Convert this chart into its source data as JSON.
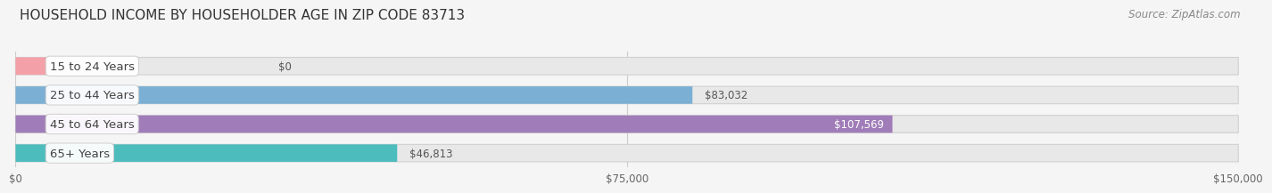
{
  "title": "HOUSEHOLD INCOME BY HOUSEHOLDER AGE IN ZIP CODE 83713",
  "source": "Source: ZipAtlas.com",
  "categories": [
    "15 to 24 Years",
    "25 to 44 Years",
    "45 to 64 Years",
    "65+ Years"
  ],
  "values": [
    0,
    83032,
    107569,
    46813
  ],
  "bar_colors": [
    "#f4a0a8",
    "#7bafd4",
    "#a07db8",
    "#4cbcbc"
  ],
  "label_colors": [
    "#555555",
    "#555555",
    "#ffffff",
    "#555555"
  ],
  "value_labels": [
    "$0",
    "$83,032",
    "$107,569",
    "$46,813"
  ],
  "xlim": [
    0,
    150000
  ],
  "xticks": [
    0,
    75000,
    150000
  ],
  "xticklabels": [
    "$0",
    "$75,000",
    "$150,000"
  ],
  "background_color": "#f5f5f5",
  "bar_background_color": "#e8e8e8",
  "bar_height": 0.6,
  "title_fontsize": 11,
  "source_fontsize": 8.5,
  "label_fontsize": 9.5,
  "value_fontsize": 8.5
}
